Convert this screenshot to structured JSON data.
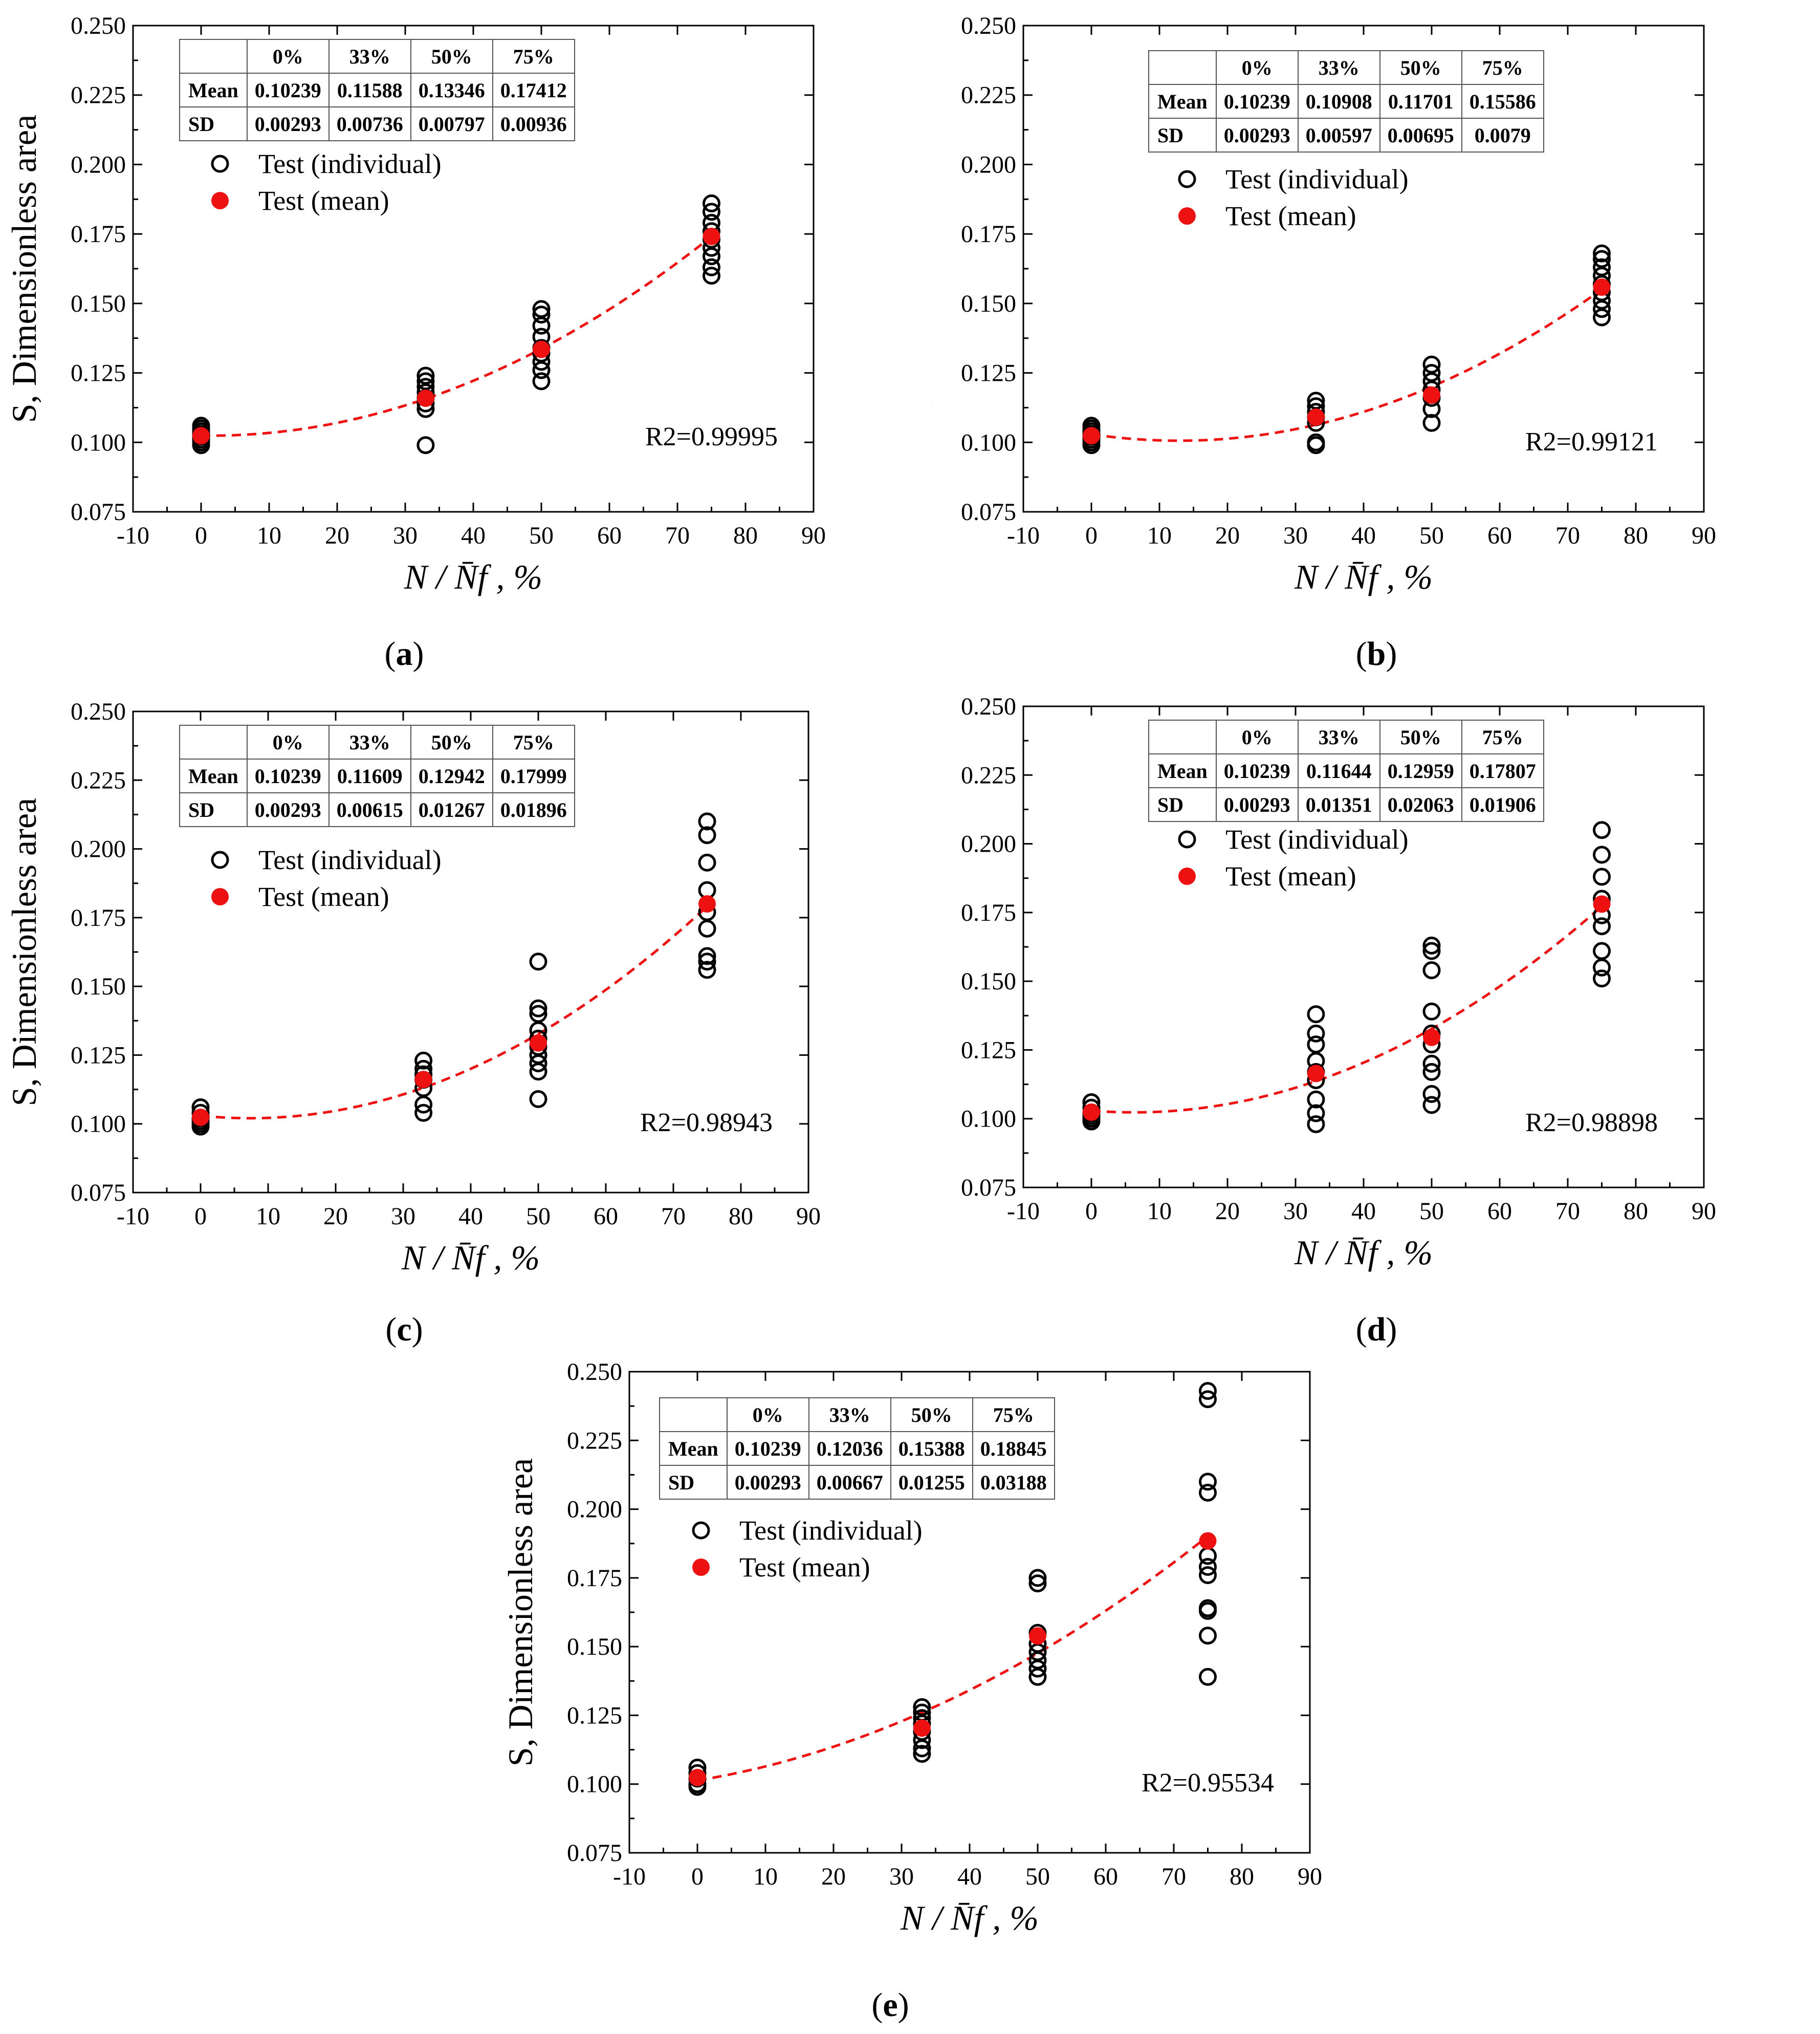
{
  "colors": {
    "mean": "#ee1111",
    "fit": "#ee1111",
    "axis": "#000000",
    "marker": "#000000"
  },
  "chart_data": [
    {
      "id": "a",
      "type": "scatter",
      "caption": "a",
      "xlabel": "N / N̄f ,   %",
      "ylabel": "S,  Dimensionless area",
      "xlim": [
        -10,
        90
      ],
      "ylim": [
        0.075,
        0.25
      ],
      "xticks": [
        -10,
        0,
        10,
        20,
        30,
        40,
        50,
        60,
        70,
        80,
        90
      ],
      "yticks": [
        0.075,
        0.1,
        0.125,
        0.15,
        0.175,
        0.2,
        0.225,
        0.25
      ],
      "ytick_labels": [
        "0.075",
        "0.100",
        "0.125",
        "0.150",
        "0.175",
        "0.200",
        "0.225",
        "0.250"
      ],
      "legend": [
        "Test (individual)",
        "Test (mean)"
      ],
      "r2_label": "R2=0.99995",
      "table": {
        "headers": [
          "",
          "0%",
          "33%",
          "50%",
          "75%"
        ],
        "rows": [
          [
            "Mean",
            "0.10239",
            "0.11588",
            "0.13346",
            "0.17412"
          ],
          [
            "SD",
            "0.00293",
            "0.00736",
            "0.00797",
            "0.00936"
          ]
        ]
      },
      "individual": [
        {
          "x": 0,
          "y": [
            0.099,
            0.1,
            0.101,
            0.102,
            0.103,
            0.104,
            0.105,
            0.106
          ]
        },
        {
          "x": 33,
          "y": [
            0.099,
            0.112,
            0.114,
            0.116,
            0.118,
            0.12,
            0.122,
            0.124
          ]
        },
        {
          "x": 50,
          "y": [
            0.122,
            0.126,
            0.129,
            0.132,
            0.134,
            0.138,
            0.142,
            0.146,
            0.148
          ]
        },
        {
          "x": 75,
          "y": [
            0.16,
            0.163,
            0.167,
            0.17,
            0.173,
            0.176,
            0.179,
            0.183,
            0.186
          ]
        }
      ],
      "mean": {
        "x": [
          0,
          33,
          50,
          75
        ],
        "y": [
          0.10239,
          0.11588,
          0.13346,
          0.17412
        ]
      },
      "fit": {
        "x_range": [
          0,
          75
        ],
        "y0": 0.1024,
        "kx": 0.2,
        "b": 0.1028
      }
    },
    {
      "id": "b",
      "type": "scatter",
      "caption": "b",
      "xlabel": "N / N̄f ,   %",
      "ylabel": "S,  Dimensionless area",
      "xlim": [
        -10,
        90
      ],
      "ylim": [
        0.075,
        0.25
      ],
      "xticks": [
        -10,
        0,
        10,
        20,
        30,
        40,
        50,
        60,
        70,
        80,
        90
      ],
      "yticks": [
        0.075,
        0.1,
        0.125,
        0.15,
        0.175,
        0.2,
        0.225,
        0.25
      ],
      "ytick_labels": [
        "0.075",
        "0.100",
        "0.125",
        "0.150",
        "0.175",
        "0.200",
        "0.225",
        "0.250"
      ],
      "legend": [
        "Test (individual)",
        "Test (mean)"
      ],
      "r2_label": "R2=0.99121",
      "table": {
        "headers": [
          "",
          "0%",
          "33%",
          "50%",
          "75%"
        ],
        "rows": [
          [
            "Mean",
            "0.10239",
            "0.10908",
            "0.11701",
            "0.15586"
          ],
          [
            "SD",
            "0.00293",
            "0.00597",
            "0.00695",
            "0.0079"
          ]
        ]
      },
      "individual": [
        {
          "x": 0,
          "y": [
            0.099,
            0.1,
            0.101,
            0.102,
            0.103,
            0.104,
            0.105,
            0.106
          ]
        },
        {
          "x": 33,
          "y": [
            0.099,
            0.1,
            0.107,
            0.109,
            0.111,
            0.113,
            0.115
          ]
        },
        {
          "x": 50,
          "y": [
            0.107,
            0.112,
            0.116,
            0.119,
            0.122,
            0.125,
            0.128
          ]
        },
        {
          "x": 75,
          "y": [
            0.145,
            0.148,
            0.151,
            0.154,
            0.157,
            0.16,
            0.163,
            0.166,
            0.168
          ]
        }
      ],
      "mean": {
        "x": [
          0,
          33,
          50,
          75
        ],
        "y": [
          0.10239,
          0.10908,
          0.11701,
          0.15586
        ]
      },
      "fit": {
        "x_range": [
          0,
          75
        ],
        "y0": 0.103,
        "kx": 0.37,
        "b": 0.053
      }
    },
    {
      "id": "c",
      "type": "scatter",
      "caption": "c",
      "xlabel": "N / N̄f ,   %",
      "ylabel": "S,  Dimensionless area",
      "xlim": [
        -10,
        90
      ],
      "ylim": [
        0.075,
        0.25
      ],
      "xticks": [
        -10,
        0,
        10,
        20,
        30,
        40,
        50,
        60,
        70,
        80,
        90
      ],
      "yticks": [
        0.075,
        0.1,
        0.125,
        0.15,
        0.175,
        0.2,
        0.225,
        0.25
      ],
      "ytick_labels": [
        "0.075",
        "0.100",
        "0.125",
        "0.150",
        "0.175",
        "0.200",
        "0.225",
        "0.250"
      ],
      "legend": [
        "Test (individual)",
        "Test (mean)"
      ],
      "r2_label": "R2=0.98943",
      "table": {
        "headers": [
          "",
          "0%",
          "33%",
          "50%",
          "75%"
        ],
        "rows": [
          [
            "Mean",
            "0.10239",
            "0.11609",
            "0.12942",
            "0.17999"
          ],
          [
            "SD",
            "0.00293",
            "0.00615",
            "0.01267",
            "0.01896"
          ]
        ]
      },
      "individual": [
        {
          "x": 0,
          "y": [
            0.099,
            0.1,
            0.101,
            0.102,
            0.104,
            0.106
          ]
        },
        {
          "x": 33,
          "y": [
            0.104,
            0.107,
            0.113,
            0.116,
            0.118,
            0.12,
            0.123
          ]
        },
        {
          "x": 50,
          "y": [
            0.109,
            0.119,
            0.122,
            0.125,
            0.128,
            0.131,
            0.134,
            0.14,
            0.142,
            0.159
          ]
        },
        {
          "x": 75,
          "y": [
            0.156,
            0.159,
            0.161,
            0.171,
            0.177,
            0.185,
            0.195,
            0.205,
            0.21
          ]
        }
      ],
      "mean": {
        "x": [
          0,
          33,
          50,
          75
        ],
        "y": [
          0.10239,
          0.11609,
          0.12942,
          0.17999
        ]
      },
      "fit": {
        "x_range": [
          0,
          75
        ],
        "y0": 0.103,
        "kx": 0.28,
        "b": 0.077
      }
    },
    {
      "id": "d",
      "type": "scatter",
      "caption": "d",
      "xlabel": "N / N̄f ,   %",
      "ylabel": "S,  Dimensionless area",
      "xlim": [
        -10,
        90
      ],
      "ylim": [
        0.075,
        0.25
      ],
      "xticks": [
        -10,
        0,
        10,
        20,
        30,
        40,
        50,
        60,
        70,
        80,
        90
      ],
      "yticks": [
        0.075,
        0.1,
        0.125,
        0.15,
        0.175,
        0.2,
        0.225,
        0.25
      ],
      "ytick_labels": [
        "0.075",
        "0.100",
        "0.125",
        "0.150",
        "0.175",
        "0.200",
        "0.225",
        "0.250"
      ],
      "legend": [
        "Test (individual)",
        "Test (mean)"
      ],
      "r2_label": "R2=0.98898",
      "table": {
        "headers": [
          "",
          "0%",
          "33%",
          "50%",
          "75%"
        ],
        "rows": [
          [
            "Mean",
            "0.10239",
            "0.11644",
            "0.12959",
            "0.17807"
          ],
          [
            "SD",
            "0.00293",
            "0.01351",
            "0.02063",
            "0.01906"
          ]
        ]
      },
      "individual": [
        {
          "x": 0,
          "y": [
            0.099,
            0.1,
            0.101,
            0.102,
            0.104,
            0.106
          ]
        },
        {
          "x": 33,
          "y": [
            0.098,
            0.102,
            0.107,
            0.114,
            0.117,
            0.121,
            0.127,
            0.131,
            0.138
          ]
        },
        {
          "x": 50,
          "y": [
            0.105,
            0.109,
            0.117,
            0.12,
            0.127,
            0.131,
            0.139,
            0.154,
            0.161,
            0.163
          ]
        },
        {
          "x": 75,
          "y": [
            0.151,
            0.155,
            0.161,
            0.17,
            0.174,
            0.18,
            0.188,
            0.196,
            0.205
          ]
        }
      ],
      "mean": {
        "x": [
          0,
          33,
          50,
          75
        ],
        "y": [
          0.10239,
          0.11644,
          0.12959,
          0.17807
        ]
      },
      "fit": {
        "x_range": [
          0,
          75
        ],
        "y0": 0.103,
        "kx": 0.28,
        "b": 0.075
      }
    },
    {
      "id": "e",
      "type": "scatter",
      "caption": "e",
      "xlabel": "N / N̄f ,   %",
      "ylabel": "S,  Dimensionless area",
      "xlim": [
        -10,
        90
      ],
      "ylim": [
        0.075,
        0.25
      ],
      "xticks": [
        -10,
        0,
        10,
        20,
        30,
        40,
        50,
        60,
        70,
        80,
        90
      ],
      "yticks": [
        0.075,
        0.1,
        0.125,
        0.15,
        0.175,
        0.2,
        0.225,
        0.25
      ],
      "ytick_labels": [
        "0.075",
        "0.100",
        "0.125",
        "0.150",
        "0.175",
        "0.200",
        "0.225",
        "0.250"
      ],
      "legend": [
        "Test (individual)",
        "Test (mean)"
      ],
      "r2_label": "R2=0.95534",
      "table": {
        "headers": [
          "",
          "0%",
          "33%",
          "50%",
          "75%"
        ],
        "rows": [
          [
            "Mean",
            "0.10239",
            "0.12036",
            "0.15388",
            "0.18845"
          ],
          [
            "SD",
            "0.00293",
            "0.00667",
            "0.01255",
            "0.03188"
          ]
        ]
      },
      "individual": [
        {
          "x": 0,
          "y": [
            0.099,
            0.1,
            0.102,
            0.104,
            0.106
          ]
        },
        {
          "x": 33,
          "y": [
            0.111,
            0.113,
            0.116,
            0.119,
            0.122,
            0.124,
            0.126,
            0.128
          ]
        },
        {
          "x": 50,
          "y": [
            0.139,
            0.142,
            0.145,
            0.148,
            0.151,
            0.155,
            0.173,
            0.175
          ]
        },
        {
          "x": 75,
          "y": [
            0.139,
            0.154,
            0.163,
            0.164,
            0.176,
            0.179,
            0.183,
            0.206,
            0.21,
            0.24,
            0.243
          ]
        }
      ],
      "mean": {
        "x": [
          0,
          33,
          50,
          75
        ],
        "y": [
          0.10239,
          0.12036,
          0.15388,
          0.18845
        ]
      },
      "fit": {
        "x_range": [
          0,
          75
        ],
        "y0": 0.101,
        "kx": 0.0,
        "b": 1.55e-06
      }
    }
  ]
}
